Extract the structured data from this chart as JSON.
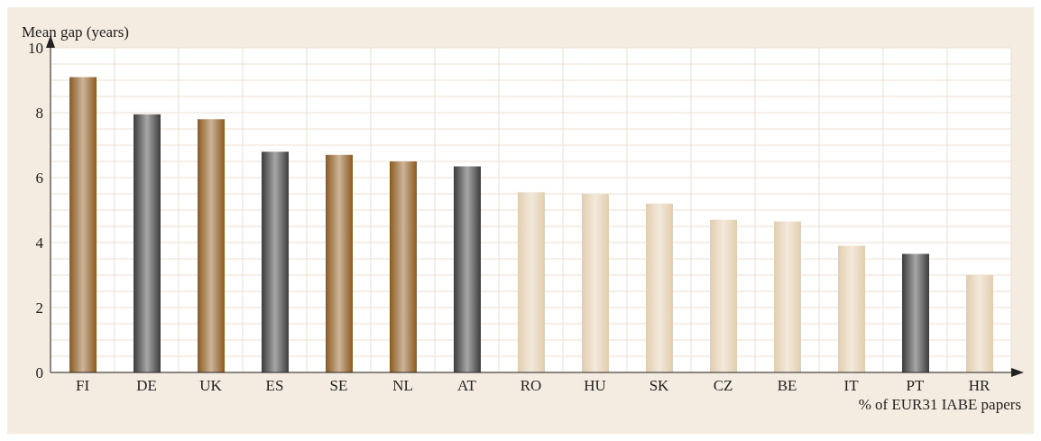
{
  "chart_data": {
    "type": "bar",
    "ylabel": "Mean gap (years)",
    "xlabel": "% of EUR31 IABE papers",
    "categories": [
      "FI",
      "DE",
      "UK",
      "ES",
      "SE",
      "NL",
      "AT",
      "RO",
      "HU",
      "SK",
      "CZ",
      "BE",
      "IT",
      "PT",
      "HR"
    ],
    "values": [
      9.1,
      7.95,
      7.8,
      6.8,
      6.7,
      6.5,
      6.35,
      5.55,
      5.5,
      5.2,
      4.7,
      4.65,
      3.9,
      3.65,
      3.0
    ],
    "colors": [
      "#8b5a1e",
      "#3c3c3c",
      "#8b5a1e",
      "#3c3c3c",
      "#8b5a1e",
      "#8b5a1e",
      "#3c3c3c",
      "#e3cdb0",
      "#e3cdb0",
      "#e3cdb0",
      "#e3cdb0",
      "#e3cdb0",
      "#e3cdb0",
      "#3c3c3c",
      "#e3cdb0"
    ],
    "ylim": [
      0,
      10
    ],
    "yticks": [
      0,
      {
        "value": 0.5,
        "label": null
      },
      2,
      {
        "value": 1,
        "label": null
      },
      {
        "value": 1.5,
        "label": null
      },
      {
        "value": 2.5,
        "label": null
      },
      {
        "value": 3,
        "label": null
      },
      {
        "value": 3.5,
        "label": null
      },
      4,
      {
        "value": 4.5,
        "label": null
      },
      {
        "value": 5,
        "label": null
      },
      {
        "value": 5.5,
        "label": null
      },
      6,
      {
        "value": 6.5,
        "label": null
      },
      {
        "value": 7,
        "label": null
      },
      {
        "value": 7.5,
        "label": null
      },
      8,
      {
        "value": 8.5,
        "label": null
      },
      {
        "value": 9,
        "label": null
      },
      {
        "value": 9.5,
        "label": null
      },
      10
    ],
    "grid": true
  }
}
